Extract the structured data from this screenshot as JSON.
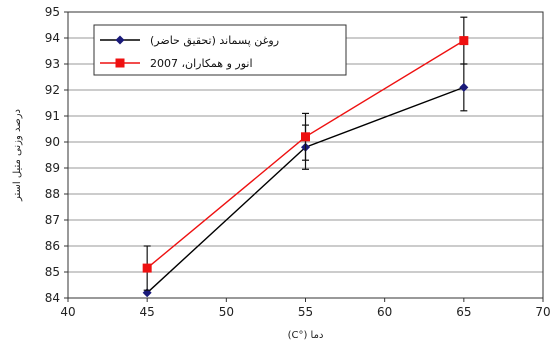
{
  "chart_data": {
    "type": "line",
    "title": "",
    "xlabel": "دما (°C)",
    "ylabel": "درصد وزنی متیل استر",
    "x": [
      45,
      55,
      65
    ],
    "xlim": [
      40,
      70
    ],
    "ylim": [
      84,
      95
    ],
    "xticks": [
      40,
      45,
      50,
      55,
      60,
      65,
      70
    ],
    "yticks": [
      84,
      85,
      86,
      87,
      88,
      89,
      90,
      91,
      92,
      93,
      94,
      95
    ],
    "grid": "horizontal",
    "legend_position": "top-left",
    "series": [
      {
        "name": "روغن پسماند (تحقیق حاضر)",
        "color": "#000000",
        "marker": "diamond",
        "marker_color": "#1a1a7a",
        "values": [
          84.2,
          89.8,
          92.1
        ],
        "error": [
          null,
          0.85,
          0.9
        ]
      },
      {
        "name": "انور و همکاران، 2007",
        "color": "#ee1111",
        "marker": "square",
        "marker_color": "#ee1111",
        "values": [
          85.15,
          90.2,
          93.9
        ],
        "error": [
          0.85,
          0.9,
          0.9
        ]
      }
    ]
  }
}
